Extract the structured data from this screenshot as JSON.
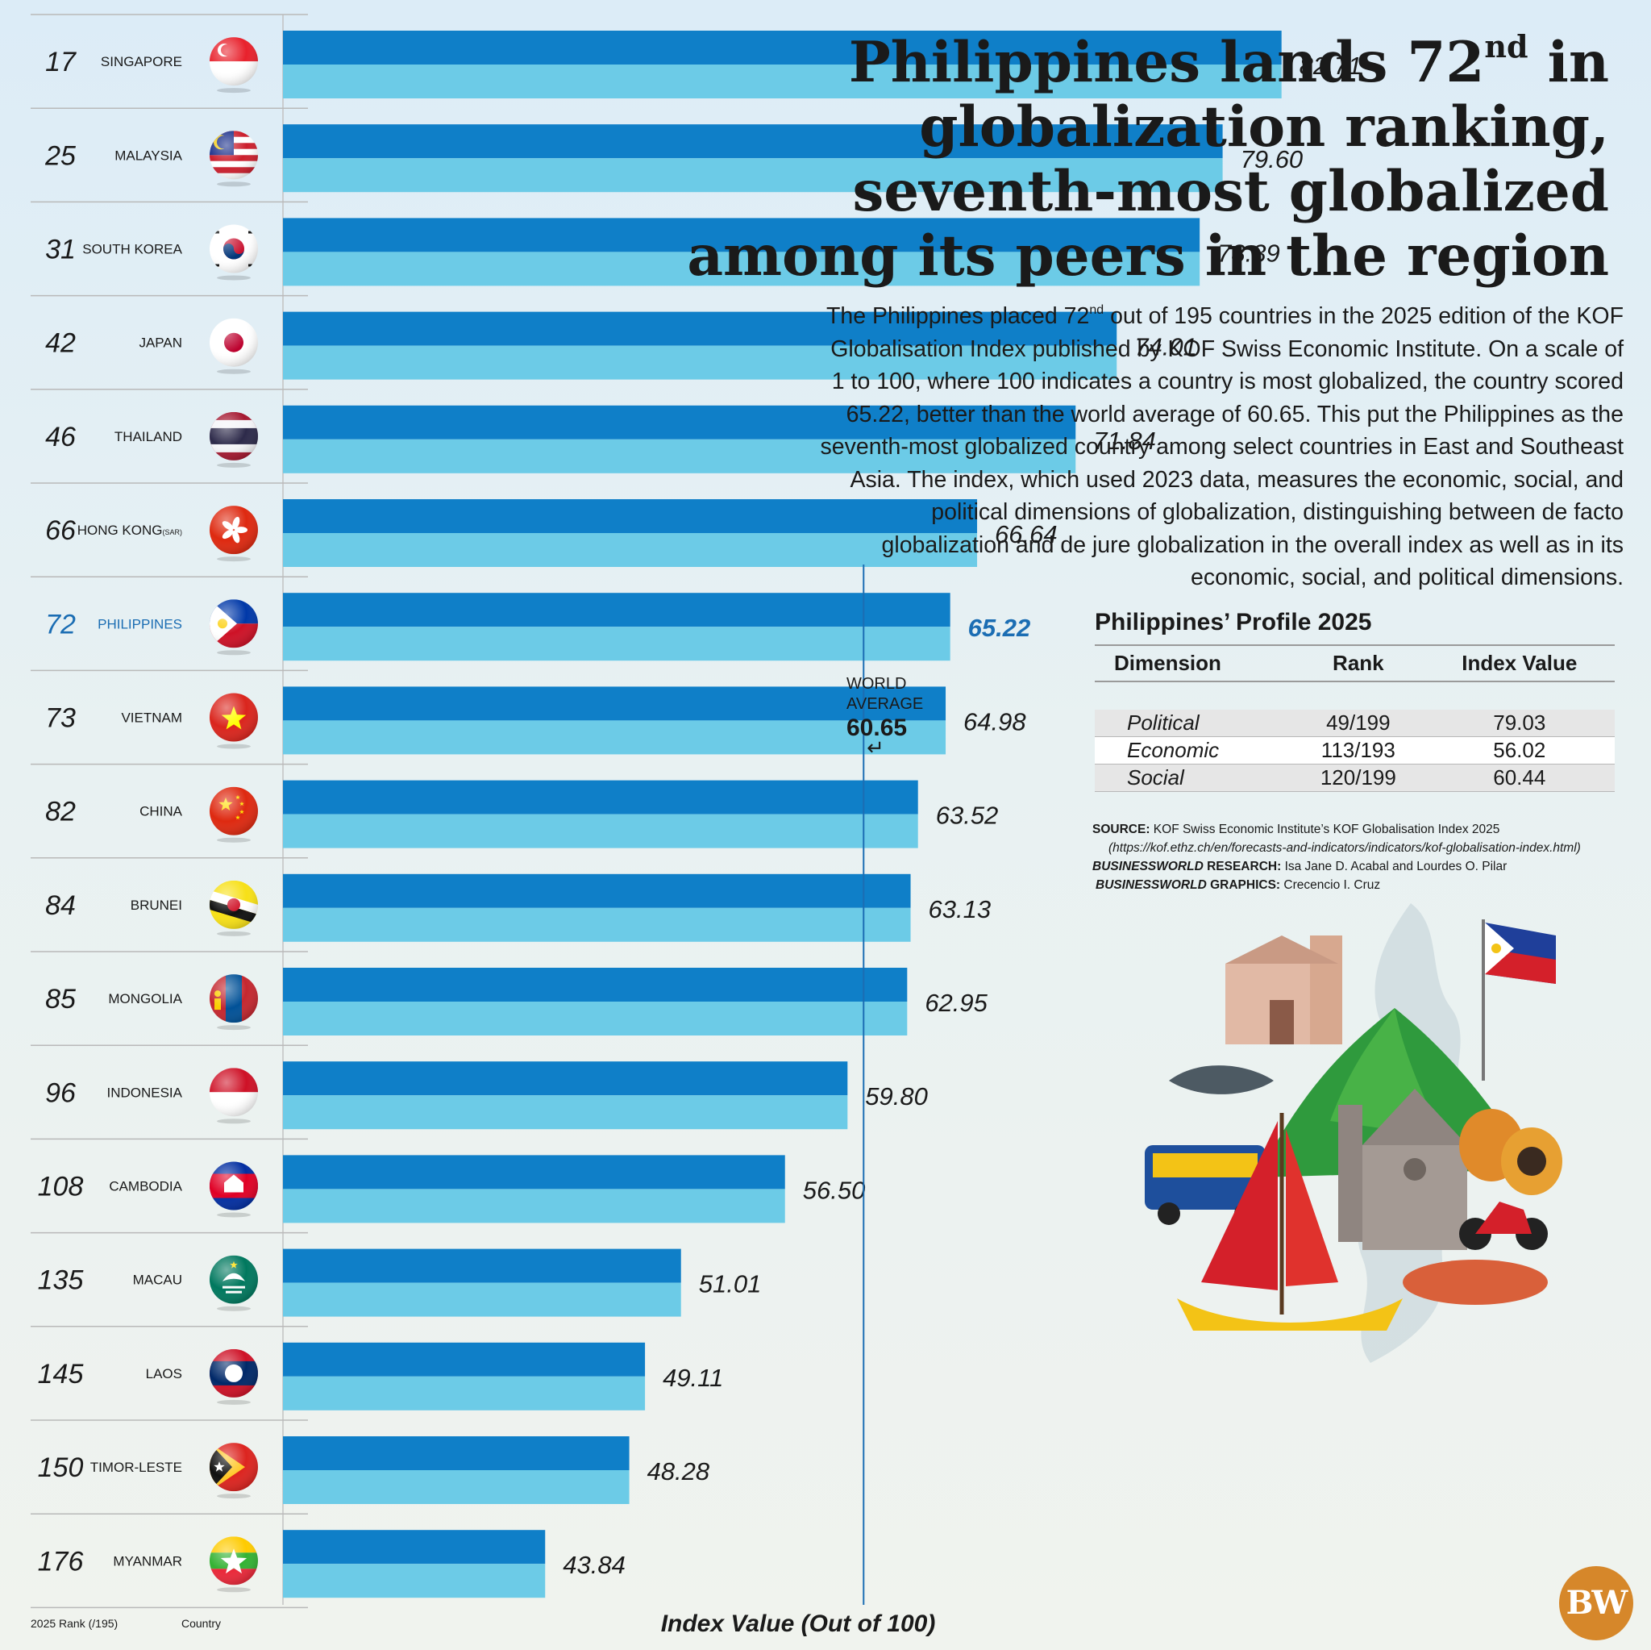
{
  "title": {
    "part1": "Philippines lands 72",
    "sup": "nd",
    "part2": " in globalization ranking, seventh-most globalized among its peers in the region"
  },
  "description": {
    "part1": "The Philippines placed 72",
    "sup": "nd",
    "part2": " out of 195 countries in the 2025 edition of the KOF Globalisation Index published by KOF Swiss Economic Institute. On a scale of 1 to 100, where 100 indicates a country is most globalized, the country scored 65.22, better than the world average of 60.65. This put the Philippines as the seventh-most globalized country among select countries in East and Southeast Asia. The index, which used 2023 data, measures the economic, social, and political dimensions of globalization, distinguishing between de facto globalization and de jure globalization in the overall index as well as in its economic, social, and political dimensions."
  },
  "chart_data": {
    "type": "bar",
    "orientation": "horizontal",
    "xlabel": "Index Value (Out of 100)",
    "rank_header": "2025 Rank (/195)",
    "country_header": "Country",
    "value_range": [
      30,
      100
    ],
    "highlight": "PHILIPPINES",
    "reference_line": {
      "label_line1": "WORLD",
      "label_line2": "AVERAGE",
      "value": 60.65,
      "value_text": "60.65",
      "arrow": "↵"
    },
    "rows": [
      {
        "rank": "17",
        "country": "SINGAPORE",
        "value": 82.71,
        "value_text": "82.71"
      },
      {
        "rank": "25",
        "country": "MALAYSIA",
        "value": 79.6,
        "value_text": "79.60"
      },
      {
        "rank": "31",
        "country": "SOUTH KOREA",
        "value": 78.39,
        "value_text": "78.39"
      },
      {
        "rank": "42",
        "country": "JAPAN",
        "value": 74.01,
        "value_text": "74.01"
      },
      {
        "rank": "46",
        "country": "THAILAND",
        "value": 71.84,
        "value_text": "71.84"
      },
      {
        "rank": "66",
        "country": "HONG KONG",
        "country_suffix": "(SAR)",
        "value": 66.64,
        "value_text": "66.64"
      },
      {
        "rank": "72",
        "country": "PHILIPPINES",
        "value": 65.22,
        "value_text": "65.22"
      },
      {
        "rank": "73",
        "country": "VIETNAM",
        "value": 64.98,
        "value_text": "64.98"
      },
      {
        "rank": "82",
        "country": "CHINA",
        "value": 63.52,
        "value_text": "63.52"
      },
      {
        "rank": "84",
        "country": "BRUNEI",
        "value": 63.13,
        "value_text": "63.13"
      },
      {
        "rank": "85",
        "country": "MONGOLIA",
        "value": 62.95,
        "value_text": "62.95"
      },
      {
        "rank": "96",
        "country": "INDONESIA",
        "value": 59.8,
        "value_text": "59.80"
      },
      {
        "rank": "108",
        "country": "CAMBODIA",
        "value": 56.5,
        "value_text": "56.50"
      },
      {
        "rank": "135",
        "country": "MACAU",
        "value": 51.01,
        "value_text": "51.01"
      },
      {
        "rank": "145",
        "country": "LAOS",
        "value": 49.11,
        "value_text": "49.11"
      },
      {
        "rank": "150",
        "country": "TIMOR-LESTE",
        "value": 48.28,
        "value_text": "48.28"
      },
      {
        "rank": "176",
        "country": "MYANMAR",
        "value": 43.84,
        "value_text": "43.84"
      }
    ]
  },
  "profile": {
    "title": "Philippines’ Profile 2025",
    "headers": [
      "Dimension",
      "Rank",
      "Index Value"
    ],
    "rows": [
      {
        "dimension": "Political",
        "rank": "49/199",
        "value": "79.03"
      },
      {
        "dimension": "Economic",
        "rank": "113/193",
        "value": "56.02"
      },
      {
        "dimension": "Social",
        "rank": "120/199",
        "value": "60.44"
      }
    ]
  },
  "source": {
    "label": "SOURCE:",
    "text": "KOF Swiss Economic Institute’s KOF Globalisation Index 2025",
    "url": "(https://kof.ethz.ch/en/forecasts-and-indicators/indicators/kof-globalisation-index.html)",
    "research_label_italic": "BUSINESSWORLD",
    "research_label": " RESEARCH:",
    "research": "Isa Jane D. Acabal and Lourdes O. Pilar",
    "graphics_label_italic": "BUSINESSWORLD",
    "graphics_label": " GRAPHICS:",
    "graphics": "Crecencio I. Cruz"
  },
  "logo": "BW",
  "colors": {
    "bar_dark": "#0f7fc8",
    "bar_light": "#6ccbe7",
    "highlight_text": "#1b6db3",
    "reference_line": "#1b6db3",
    "logo": "#d6872a"
  },
  "flag_icons": [
    "singapore-flag-icon",
    "malaysia-flag-icon",
    "south-korea-flag-icon",
    "japan-flag-icon",
    "thailand-flag-icon",
    "hong-kong-flag-icon",
    "philippines-flag-icon",
    "vietnam-flag-icon",
    "china-flag-icon",
    "brunei-flag-icon",
    "mongolia-flag-icon",
    "indonesia-flag-icon",
    "cambodia-flag-icon",
    "macau-flag-icon",
    "laos-flag-icon",
    "timor-leste-flag-icon",
    "myanmar-flag-icon"
  ]
}
